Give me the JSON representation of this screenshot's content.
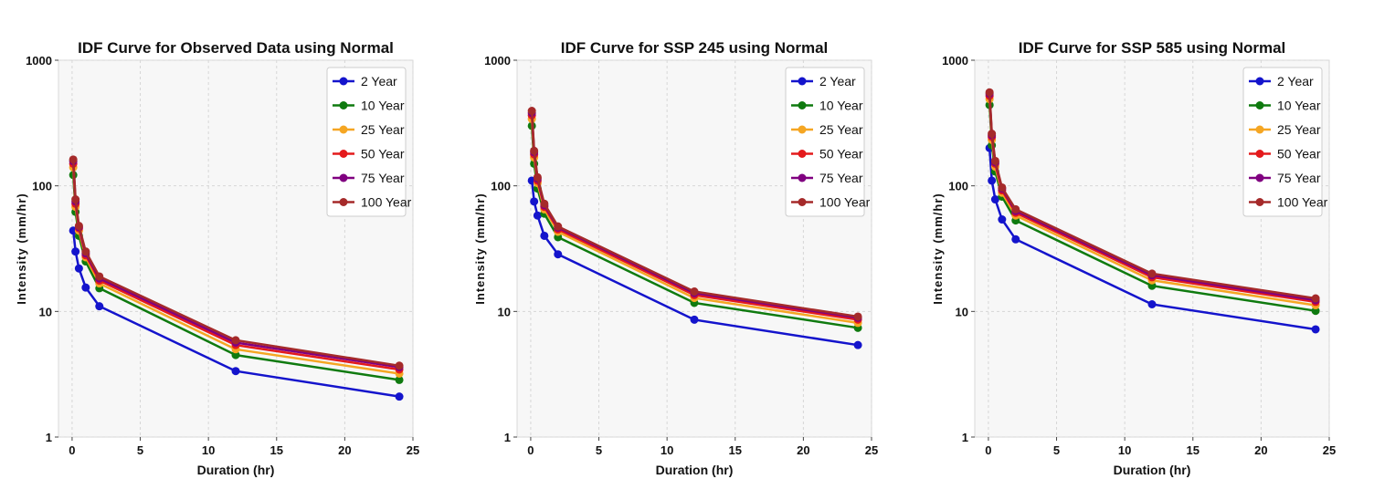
{
  "chart_data": [
    {
      "type": "line",
      "title": "IDF Curve for Observed Data using Normal",
      "xlabel": "Duration (hr)",
      "ylabel": "Intensity (mm/hr)",
      "yscale": "log",
      "xlim": [
        -1,
        25
      ],
      "ylim": [
        1,
        1000
      ],
      "xticks": [
        "0",
        "5",
        "10",
        "15",
        "20",
        "25"
      ],
      "yticks": [
        "1",
        "10",
        "100",
        "1000"
      ],
      "grid": true,
      "legend": "top-right",
      "series": [
        {
          "name": "2 Year",
          "color": "#1414cc",
          "x": [
            0.083,
            0.25,
            0.5,
            1,
            2,
            12,
            24
          ],
          "y": [
            44,
            30,
            22,
            15.5,
            11,
            3.35,
            2.1
          ]
        },
        {
          "name": "10 Year",
          "color": "#0f7a0f",
          "x": [
            0.083,
            0.25,
            0.5,
            1,
            2,
            12,
            24
          ],
          "y": [
            122,
            62,
            40,
            25,
            15.3,
            4.5,
            2.85
          ]
        },
        {
          "name": "25 Year",
          "color": "#f5a623",
          "x": [
            0.083,
            0.25,
            0.5,
            1,
            2,
            12,
            24
          ],
          "y": [
            140,
            68,
            44,
            27,
            16.7,
            5.0,
            3.2
          ]
        },
        {
          "name": "50 Year",
          "color": "#e41a1c",
          "x": [
            0.083,
            0.25,
            0.5,
            1,
            2,
            12,
            24
          ],
          "y": [
            150,
            72,
            46,
            28,
            17.6,
            5.4,
            3.45
          ]
        },
        {
          "name": "75 Year",
          "color": "#800080",
          "x": [
            0.083,
            0.25,
            0.5,
            1,
            2,
            12,
            24
          ],
          "y": [
            157,
            75,
            47,
            29,
            18.3,
            5.65,
            3.6
          ]
        },
        {
          "name": "100 Year",
          "color": "#a52a2a",
          "x": [
            0.083,
            0.25,
            0.5,
            1,
            2,
            12,
            24
          ],
          "y": [
            162,
            78,
            48,
            30,
            19,
            5.9,
            3.7
          ]
        }
      ]
    },
    {
      "type": "line",
      "title": "IDF Curve for SSP 245 using Normal",
      "xlabel": "Duration (hr)",
      "ylabel": "Intensity (mm/hr)",
      "yscale": "log",
      "xlim": [
        -1,
        25
      ],
      "ylim": [
        1,
        1000
      ],
      "xticks": [
        "0",
        "5",
        "10",
        "15",
        "20",
        "25"
      ],
      "yticks": [
        "1",
        "10",
        "100",
        "1000"
      ],
      "grid": true,
      "legend": "top-right",
      "series": [
        {
          "name": "2 Year",
          "color": "#1414cc",
          "x": [
            0.083,
            0.25,
            0.5,
            1,
            2,
            12,
            24
          ],
          "y": [
            110,
            75,
            58,
            40,
            28.5,
            8.6,
            5.4
          ]
        },
        {
          "name": "10 Year",
          "color": "#0f7a0f",
          "x": [
            0.083,
            0.25,
            0.5,
            1,
            2,
            12,
            24
          ],
          "y": [
            300,
            150,
            95,
            60,
            39,
            11.7,
            7.4
          ]
        },
        {
          "name": "25 Year",
          "color": "#f5a623",
          "x": [
            0.083,
            0.25,
            0.5,
            1,
            2,
            12,
            24
          ],
          "y": [
            340,
            168,
            105,
            65,
            43,
            12.8,
            8.1
          ]
        },
        {
          "name": "50 Year",
          "color": "#e41a1c",
          "x": [
            0.083,
            0.25,
            0.5,
            1,
            2,
            12,
            24
          ],
          "y": [
            365,
            178,
            110,
            68,
            45,
            13.5,
            8.6
          ]
        },
        {
          "name": "75 Year",
          "color": "#800080",
          "x": [
            0.083,
            0.25,
            0.5,
            1,
            2,
            12,
            24
          ],
          "y": [
            380,
            185,
            114,
            70,
            46.5,
            14.0,
            8.9
          ]
        },
        {
          "name": "100 Year",
          "color": "#a52a2a",
          "x": [
            0.083,
            0.25,
            0.5,
            1,
            2,
            12,
            24
          ],
          "y": [
            395,
            190,
            117,
            72,
            47.5,
            14.4,
            9.1
          ]
        }
      ]
    },
    {
      "type": "line",
      "title": "IDF Curve for SSP 585 using Normal",
      "xlabel": "Duration (hr)",
      "ylabel": "Intensity (mm/hr)",
      "yscale": "log",
      "xlim": [
        -1,
        25
      ],
      "ylim": [
        1,
        1000
      ],
      "xticks": [
        "0",
        "5",
        "10",
        "15",
        "20",
        "25"
      ],
      "yticks": [
        "1",
        "10",
        "100",
        "1000"
      ],
      "grid": true,
      "legend": "top-right",
      "series": [
        {
          "name": "2 Year",
          "color": "#1414cc",
          "x": [
            0.083,
            0.25,
            0.5,
            1,
            2,
            12,
            24
          ],
          "y": [
            200,
            110,
            78,
            54,
            37.5,
            11.4,
            7.2
          ]
        },
        {
          "name": "10 Year",
          "color": "#0f7a0f",
          "x": [
            0.083,
            0.25,
            0.5,
            1,
            2,
            12,
            24
          ],
          "y": [
            440,
            210,
            130,
            82,
            53,
            16.0,
            10.1
          ]
        },
        {
          "name": "25 Year",
          "color": "#f5a623",
          "x": [
            0.083,
            0.25,
            0.5,
            1,
            2,
            12,
            24
          ],
          "y": [
            490,
            232,
            142,
            88,
            58,
            17.7,
            11.2
          ]
        },
        {
          "name": "50 Year",
          "color": "#e41a1c",
          "x": [
            0.083,
            0.25,
            0.5,
            1,
            2,
            12,
            24
          ],
          "y": [
            520,
            245,
            150,
            92,
            61,
            18.7,
            11.9
          ]
        },
        {
          "name": "75 Year",
          "color": "#800080",
          "x": [
            0.083,
            0.25,
            0.5,
            1,
            2,
            12,
            24
          ],
          "y": [
            540,
            253,
            154,
            95,
            63,
            19.4,
            12.3
          ]
        },
        {
          "name": "100 Year",
          "color": "#a52a2a",
          "x": [
            0.083,
            0.25,
            0.5,
            1,
            2,
            12,
            24
          ],
          "y": [
            555,
            260,
            158,
            97,
            65,
            20.0,
            12.7
          ]
        }
      ]
    }
  ]
}
